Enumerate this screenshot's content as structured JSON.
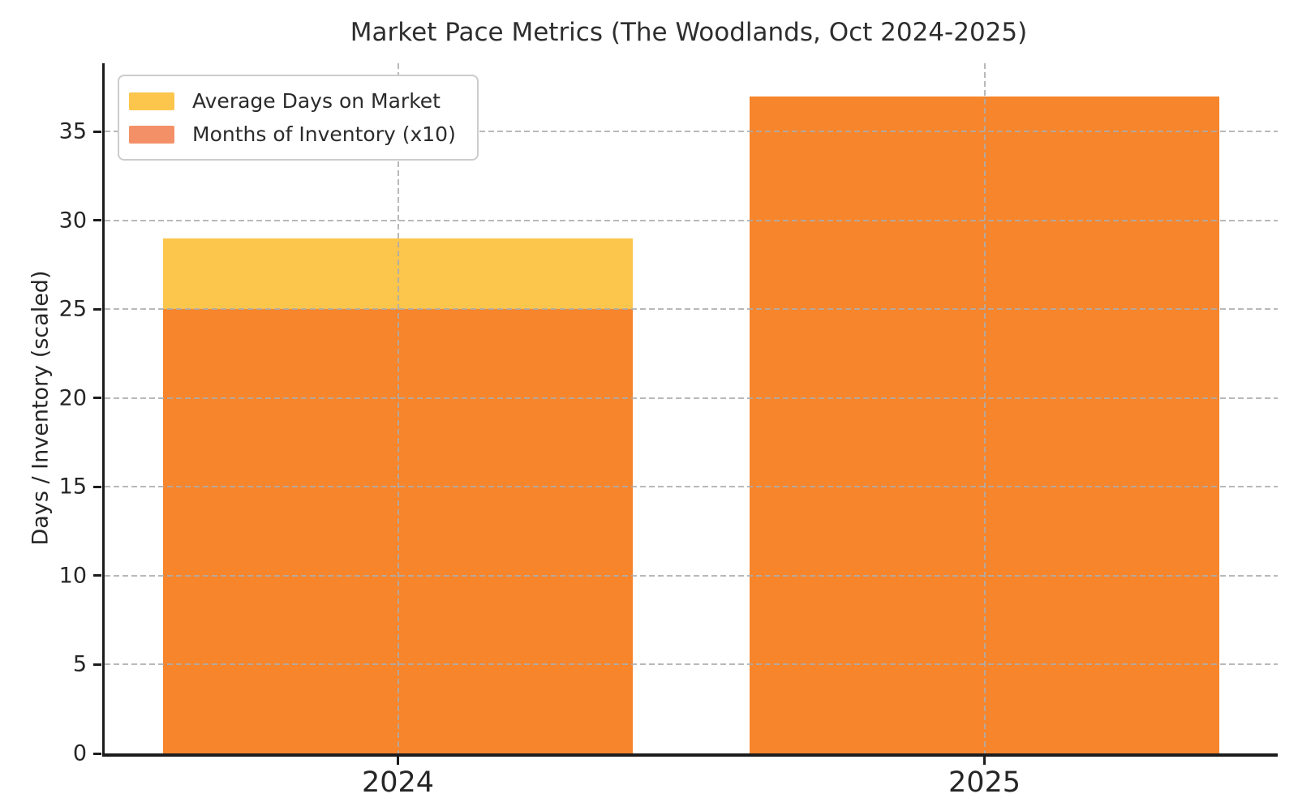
{
  "chart_data": {
    "type": "bar",
    "bar_mode": "overlaid",
    "title": "Market Pace Metrics (The Woodlands, Oct 2024-2025)",
    "ylabel": "Days / Inventory (scaled)",
    "xlabel": "",
    "categories": [
      "2024",
      "2025"
    ],
    "series": [
      {
        "name": "Average Days on Market",
        "values": [
          29,
          37
        ],
        "legend_color": "#FCC64C",
        "bar_color": "#FCC64C"
      },
      {
        "name": "Months of Inventory (x10)",
        "values": [
          25,
          37
        ],
        "legend_color": "#F49067",
        "bar_color": "#F6852C"
      }
    ],
    "yticks": [
      0,
      5,
      10,
      15,
      20,
      25,
      30,
      35
    ],
    "ylim": [
      0,
      38.85
    ],
    "bar_width_fraction": 0.8,
    "grid": true,
    "grid_style": "dashed",
    "grid_above_bars": true,
    "legend_position": "upper left"
  },
  "colors": {
    "background": "#ffffff",
    "grid": "#c9c9c9",
    "spine": "#1c1c1c",
    "tick_text": "#262626",
    "title_text": "#2e2e2e"
  }
}
